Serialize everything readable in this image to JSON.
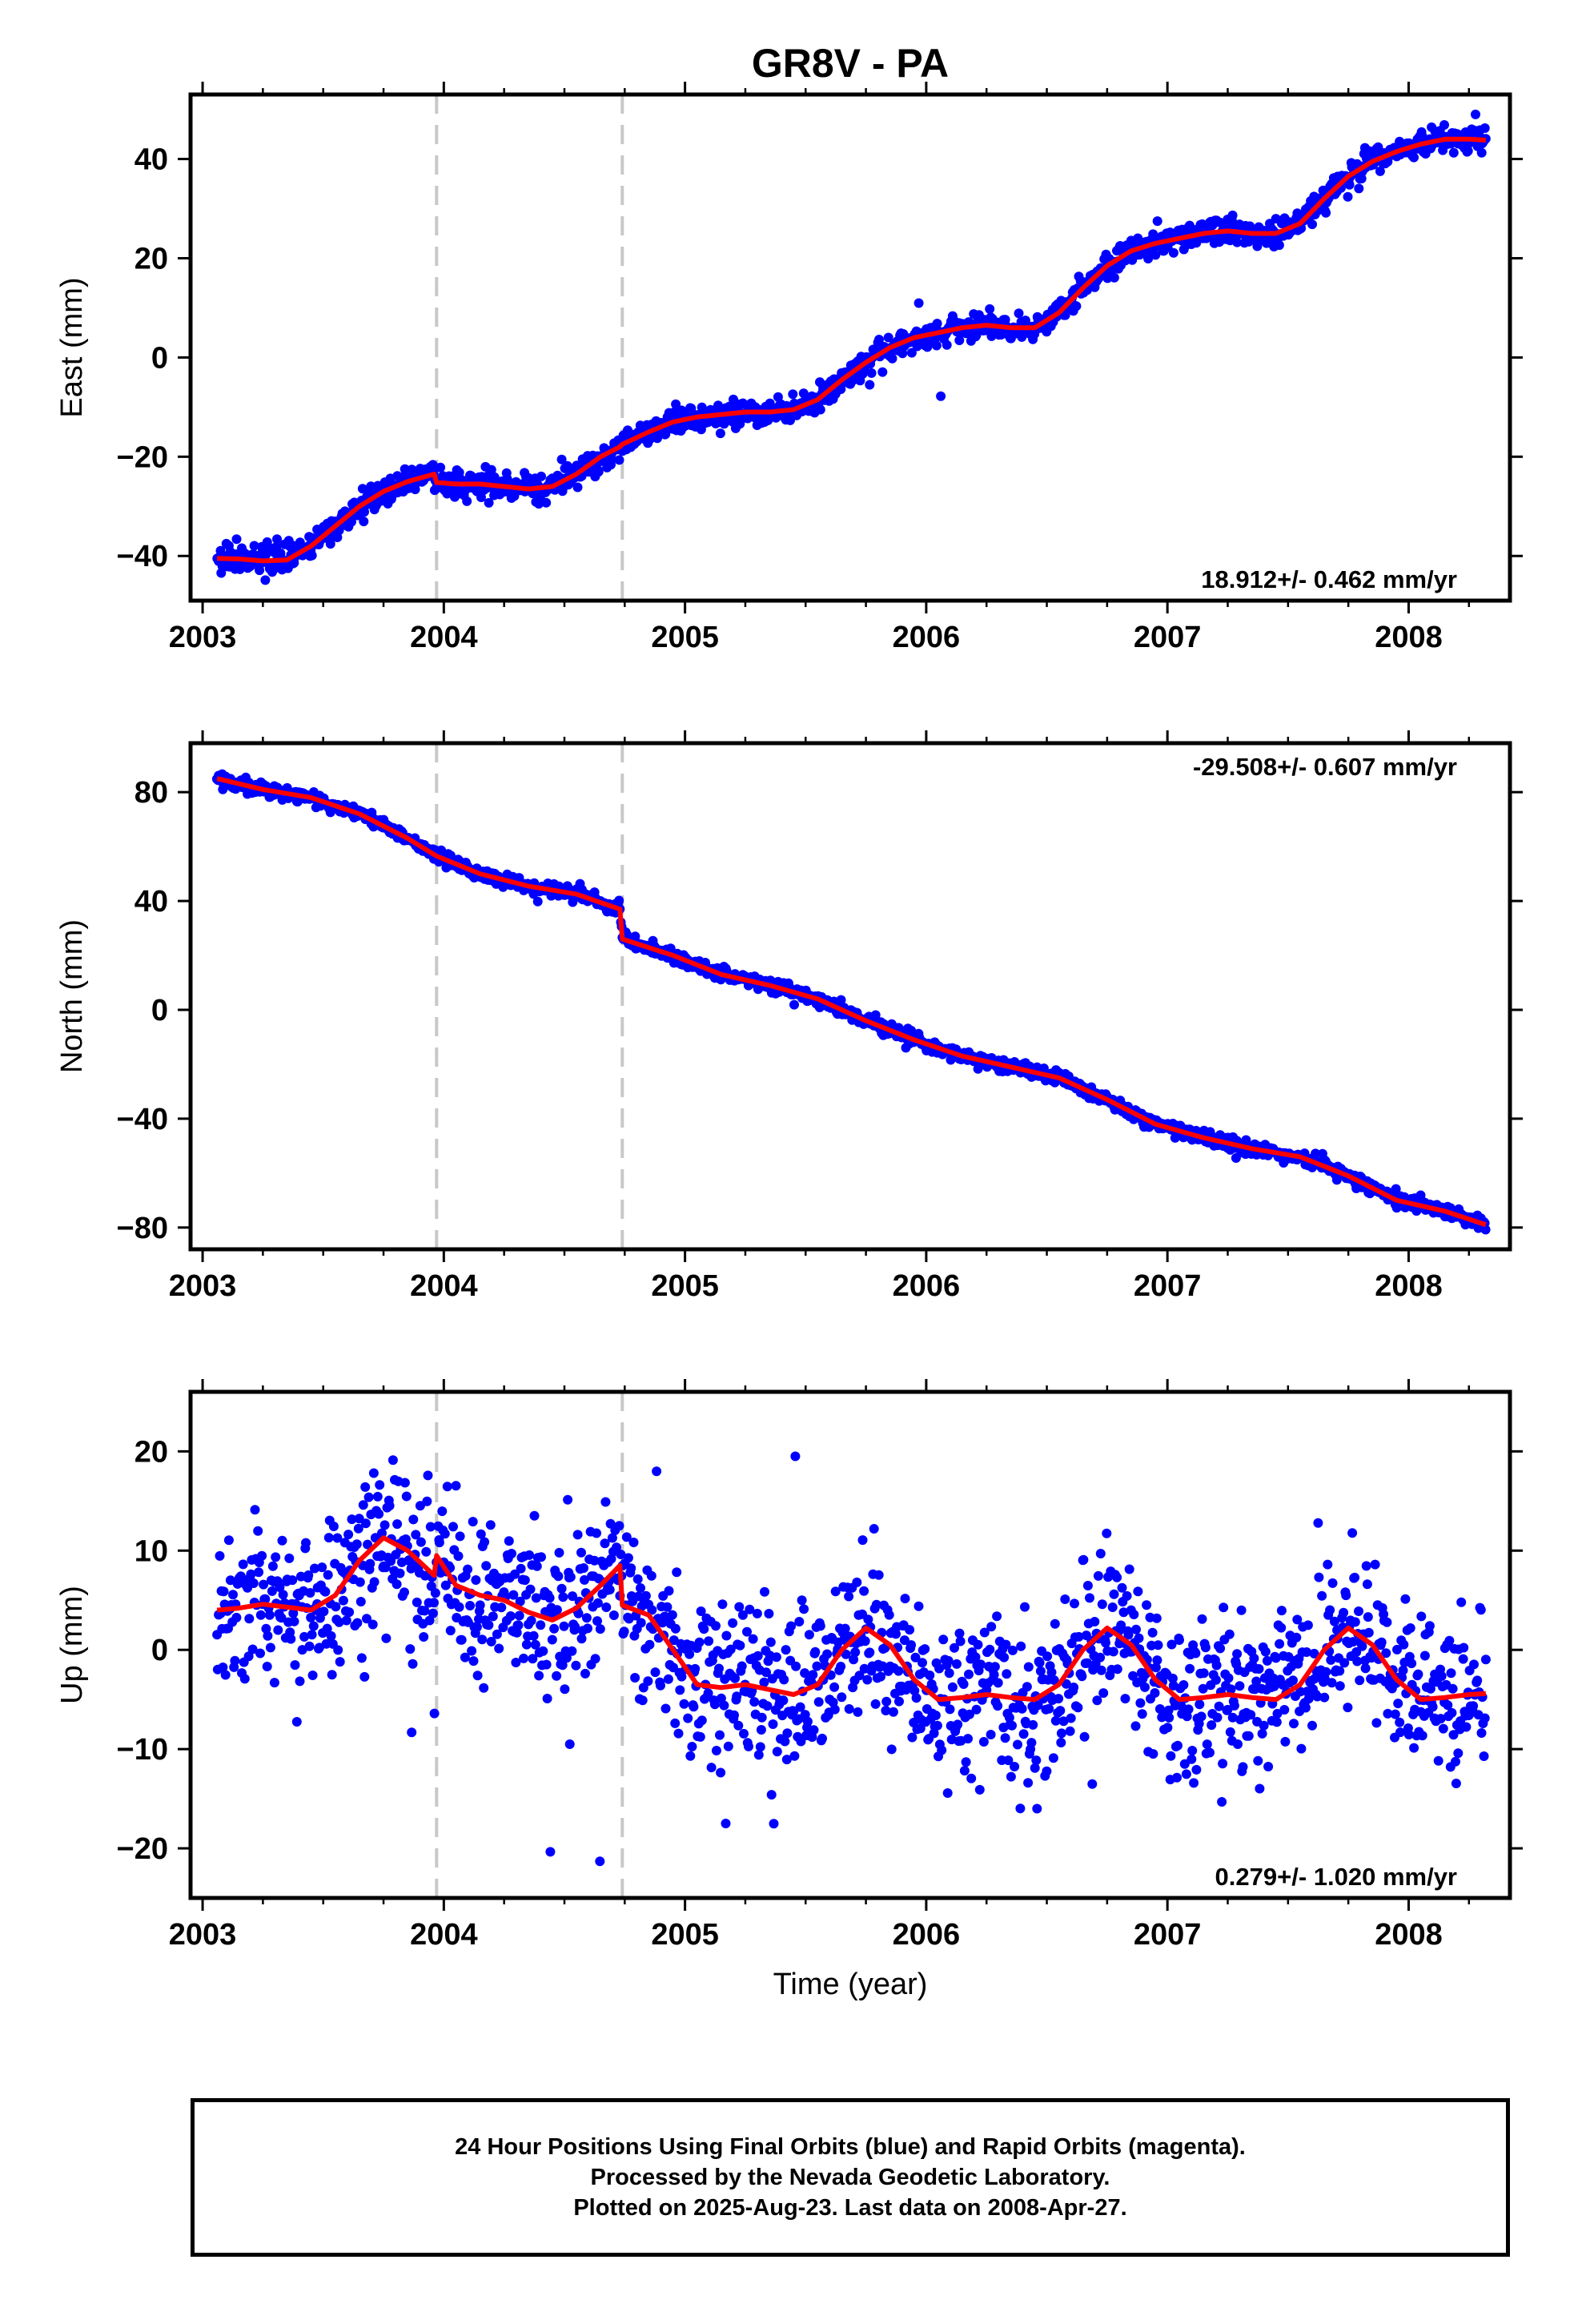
{
  "title": "GR8V - PA",
  "x_axis_label": "Time (year)",
  "x_ticks": [
    "2003",
    "2004",
    "2005",
    "2006",
    "2007",
    "2008"
  ],
  "footer": {
    "line1": "24 Hour Positions Using Final Orbits (blue) and Rapid Orbits (magenta).",
    "line2": "Processed by the Nevada Geodetic Laboratory.",
    "line3": "Plotted on 2025-Aug-23. Last data on 2008-Apr-27."
  },
  "colors": {
    "observations": "#0000ff",
    "model": "#ff0000",
    "event_lines": "#c8c8c8",
    "frame": "#000000"
  },
  "chart_data": [
    {
      "type": "scatter",
      "ylabel": "East (mm)",
      "xlim": [
        2002.95,
        2008.42
      ],
      "ylim": [
        -49,
        53
      ],
      "yticks": [
        "40",
        "20",
        "0",
        "−20",
        "−40"
      ],
      "ytick_values": [
        40,
        20,
        0,
        -20,
        -40
      ],
      "rate_label": "18.912+/- 0.462 mm/yr",
      "rate_position": "bottom-right",
      "event_lines": [
        2003.97,
        2004.74
      ],
      "data_start": 2003.06,
      "data_end": 2008.32,
      "noise_sd": 1.3,
      "model": {
        "x": [
          2003.06,
          2003.15,
          2003.25,
          2003.35,
          2003.45,
          2003.55,
          2003.65,
          2003.75,
          2003.85,
          2003.96,
          2003.97,
          2004.05,
          2004.15,
          2004.25,
          2004.35,
          2004.45,
          2004.55,
          2004.65,
          2004.73,
          2004.74,
          2004.85,
          2004.95,
          2005.05,
          2005.15,
          2005.25,
          2005.35,
          2005.45,
          2005.55,
          2005.65,
          2005.75,
          2005.85,
          2005.95,
          2006.05,
          2006.15,
          2006.25,
          2006.35,
          2006.45,
          2006.55,
          2006.65,
          2006.75,
          2006.85,
          2006.95,
          2007.05,
          2007.15,
          2007.25,
          2007.35,
          2007.45,
          2007.55,
          2007.65,
          2007.75,
          2007.85,
          2007.95,
          2008.05,
          2008.15,
          2008.25,
          2008.32
        ],
        "y": [
          -40.5,
          -40.6,
          -41.0,
          -40.8,
          -38.0,
          -34.0,
          -30.0,
          -27.0,
          -25.0,
          -23.5,
          -25.2,
          -25.5,
          -25.5,
          -26.0,
          -26.5,
          -26.0,
          -23.5,
          -20.0,
          -18.0,
          -17.5,
          -15.0,
          -13.0,
          -12.0,
          -11.5,
          -11.0,
          -11.0,
          -10.5,
          -8.5,
          -4.5,
          -1.0,
          2.0,
          4.0,
          5.0,
          6.0,
          6.5,
          6.0,
          6.0,
          9.0,
          14.0,
          18.5,
          21.5,
          23.0,
          24.0,
          25.0,
          25.5,
          25.0,
          25.0,
          27.0,
          32.0,
          36.5,
          39.5,
          41.5,
          43.0,
          44.0,
          44.0,
          43.8
        ]
      }
    },
    {
      "type": "scatter",
      "ylabel": "North (mm)",
      "xlim": [
        2002.95,
        2008.42
      ],
      "ylim": [
        -88,
        98
      ],
      "yticks": [
        "80",
        "40",
        "0",
        "−40",
        "−80"
      ],
      "ytick_values": [
        80,
        40,
        0,
        -40,
        -80
      ],
      "rate_label": "-29.508+/- 0.607 mm/yr",
      "rate_position": "top-right",
      "event_lines": [
        2003.97,
        2004.74
      ],
      "data_start": 2003.06,
      "data_end": 2008.32,
      "noise_sd": 1.2,
      "model": {
        "x": [
          2003.06,
          2003.25,
          2003.45,
          2003.65,
          2003.85,
          2003.97,
          2004.15,
          2004.35,
          2004.55,
          2004.73,
          2004.74,
          2004.95,
          2005.15,
          2005.35,
          2005.55,
          2005.75,
          2005.95,
          2006.15,
          2006.35,
          2006.55,
          2006.75,
          2006.95,
          2007.15,
          2007.35,
          2007.55,
          2007.75,
          2007.95,
          2008.15,
          2008.32
        ],
        "y": [
          85.0,
          81.0,
          78.0,
          72.0,
          63.0,
          56.5,
          50.0,
          45.5,
          42.5,
          37.0,
          26.0,
          20.0,
          13.0,
          9.0,
          4.0,
          -4.0,
          -11.0,
          -17.0,
          -21.0,
          -25.0,
          -33.0,
          -42.0,
          -47.0,
          -51.0,
          -54.0,
          -61.0,
          -70.0,
          -74.0,
          -79.0
        ]
      }
    },
    {
      "type": "scatter",
      "ylabel": "Up (mm)",
      "xlim": [
        2002.95,
        2008.42
      ],
      "ylim": [
        -25,
        26
      ],
      "yticks": [
        "20",
        "10",
        "0",
        "−10",
        "−20"
      ],
      "ytick_values": [
        20,
        10,
        0,
        -10,
        -20
      ],
      "rate_label": "0.279+/- 1.020 mm/yr",
      "rate_position": "bottom-right",
      "event_lines": [
        2003.97,
        2004.74
      ],
      "data_start": 2003.06,
      "data_end": 2008.32,
      "noise_sd": 4.0,
      "model": {
        "x": [
          2003.06,
          2003.15,
          2003.25,
          2003.35,
          2003.45,
          2003.55,
          2003.65,
          2003.75,
          2003.85,
          2003.96,
          2003.97,
          2004.05,
          2004.15,
          2004.25,
          2004.35,
          2004.45,
          2004.55,
          2004.65,
          2004.73,
          2004.74,
          2004.85,
          2004.95,
          2005.05,
          2005.15,
          2005.25,
          2005.35,
          2005.45,
          2005.55,
          2005.65,
          2005.75,
          2005.85,
          2005.95,
          2006.05,
          2006.15,
          2006.25,
          2006.35,
          2006.45,
          2006.55,
          2006.65,
          2006.75,
          2006.85,
          2006.95,
          2007.05,
          2007.15,
          2007.25,
          2007.35,
          2007.45,
          2007.55,
          2007.65,
          2007.75,
          2007.85,
          2007.95,
          2008.05,
          2008.15,
          2008.25,
          2008.32
        ],
        "y": [
          4.0,
          4.2,
          4.6,
          4.3,
          4.0,
          5.5,
          9.0,
          11.3,
          10.0,
          7.5,
          9.5,
          6.5,
          5.5,
          5.0,
          3.8,
          3.0,
          4.2,
          6.5,
          8.5,
          4.5,
          3.5,
          0.0,
          -3.5,
          -3.8,
          -3.5,
          -4.0,
          -4.5,
          -3.5,
          0.0,
          2.2,
          0.5,
          -3.0,
          -5.0,
          -4.8,
          -4.5,
          -4.8,
          -5.0,
          -3.5,
          0.0,
          2.2,
          0.5,
          -3.0,
          -5.0,
          -4.8,
          -4.5,
          -4.8,
          -5.0,
          -3.5,
          0.0,
          2.2,
          0.5,
          -3.0,
          -5.0,
          -4.8,
          -4.5,
          -4.4
        ]
      }
    }
  ]
}
